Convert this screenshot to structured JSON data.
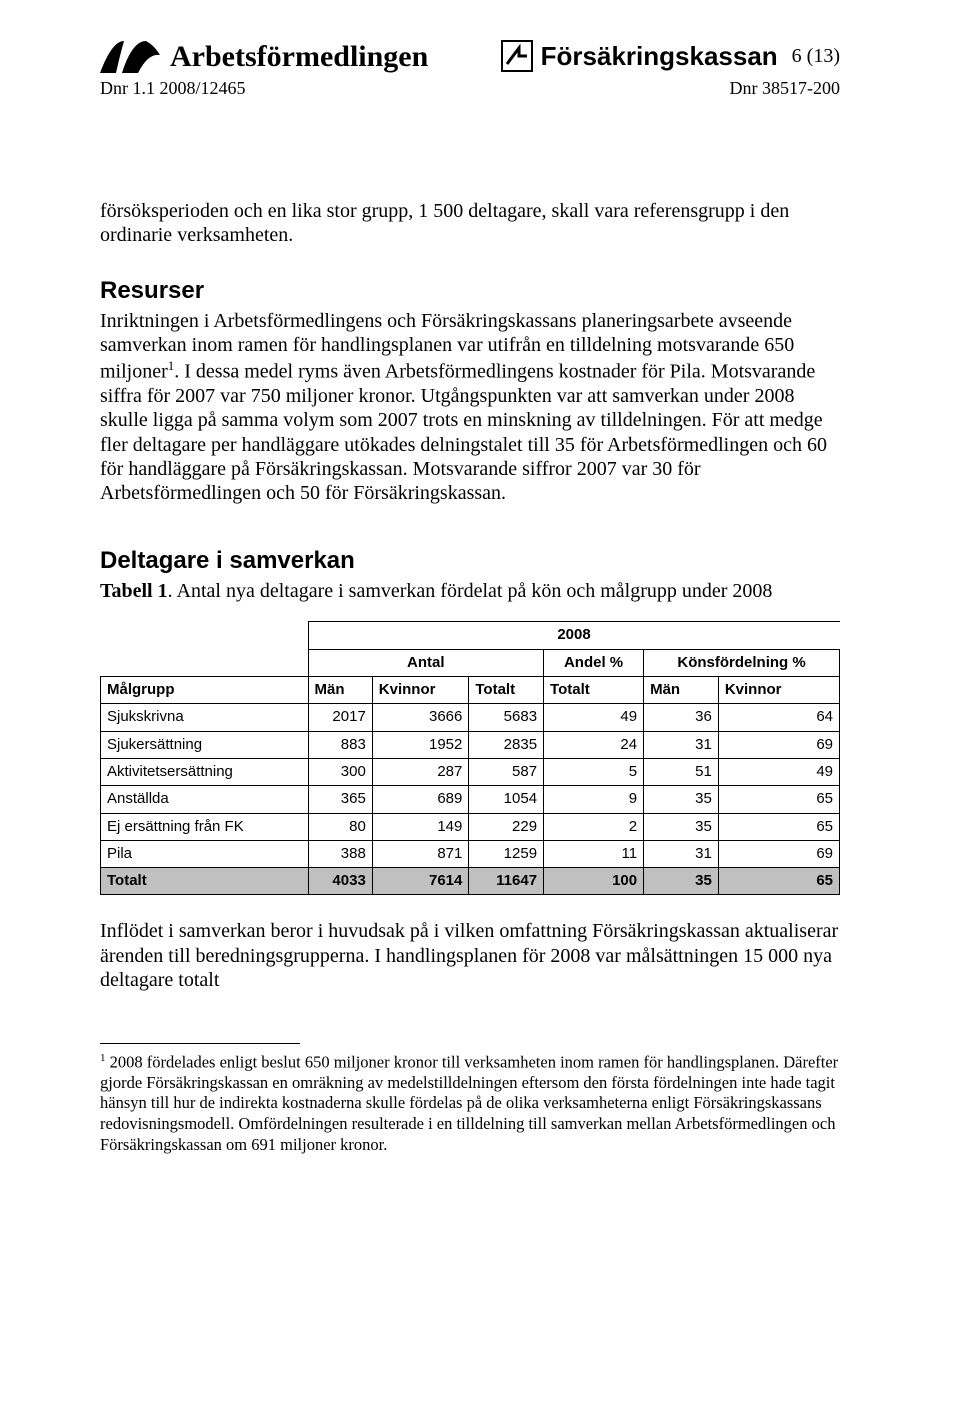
{
  "header": {
    "org1": "Arbetsförmedlingen",
    "org2": "Försäkringskassan",
    "page_num": "6 (13)",
    "dnr_left": "Dnr 1.1 2008/12465",
    "dnr_right": "Dnr 38517-200"
  },
  "paragraphs": {
    "p1": "försöksperioden och en lika stor grupp, 1 500 deltagare, skall vara referensgrupp i den ordinarie verksamheten.",
    "h_resurser": "Resurser",
    "p2a": "Inriktningen i Arbetsförmedlingens och Försäkringskassans planeringsarbete avseende samverkan inom ramen för handlingsplanen var utifrån en tilldelning motsvarande 650 miljoner",
    "p2b": ". I dessa medel ryms även Arbetsförmedlingens kostnader för Pila. Motsvarande siffra för 2007 var 750 miljoner kronor. Utgångspunkten var att samverkan under 2008 skulle ligga på samma volym som 2007 trots en minskning av tilldelningen. För att medge fler deltagare per handläggare utökades delningstalet till 35 för Arbetsförmedlingen och 60 för handläggare på Försäkringskassan. Motsvarande siffror 2007 var 30 för Arbetsförmedlingen och 50 för Försäkringskassan.",
    "h_deltagare": "Deltagare i samverkan",
    "tabell1_bold": "Tabell 1",
    "tabell1_rest": ". Antal nya deltagare i samverkan fördelat på kön och målgrupp under 2008",
    "p_after_table": "Inflödet i samverkan beror i huvudsak på i vilken omfattning Försäkringskassan aktualiserar ärenden till beredningsgrupperna. I handlingsplanen för 2008 var målsättningen 15 000 nya deltagare totalt",
    "footnote_marker": "1",
    "footnote_text": "2008 fördelades enligt beslut 650 miljoner kronor till verksamheten inom ramen för handlingsplanen. Därefter gjorde Försäkringskassan en omräkning av medelstilldelningen eftersom den första fördelningen inte hade tagit hänsyn till hur de indirekta kostnaderna skulle fördelas på de olika verksamheterna enligt Försäkringskassans redovisningsmodell. Omfördelningen resulterade i en tilldelning till samverkan mellan Arbetsförmedlingen och Försäkringskassan om 691 miljoner kronor."
  },
  "table": {
    "year": "2008",
    "group_headers": [
      "Antal",
      "Andel %",
      "Könsfördelning %"
    ],
    "col_headers": [
      "Målgrupp",
      "Män",
      "Kvinnor",
      "Totalt",
      "Totalt",
      "Män",
      "Kvinnor"
    ],
    "rows": [
      {
        "label": "Sjukskrivna",
        "men": 2017,
        "kvinnor": 3666,
        "totalt": 5683,
        "andel": 49,
        "kf_men": 36,
        "kf_kvinnor": 64
      },
      {
        "label": "Sjukersättning",
        "men": 883,
        "kvinnor": 1952,
        "totalt": 2835,
        "andel": 24,
        "kf_men": 31,
        "kf_kvinnor": 69
      },
      {
        "label": "Aktivitetsersättning",
        "men": 300,
        "kvinnor": 287,
        "totalt": 587,
        "andel": 5,
        "kf_men": 51,
        "kf_kvinnor": 49
      },
      {
        "label": "Anställda",
        "men": 365,
        "kvinnor": 689,
        "totalt": 1054,
        "andel": 9,
        "kf_men": 35,
        "kf_kvinnor": 65
      },
      {
        "label": "Ej ersättning från FK",
        "men": 80,
        "kvinnor": 149,
        "totalt": 229,
        "andel": 2,
        "kf_men": 35,
        "kf_kvinnor": 65
      },
      {
        "label": "Pila",
        "men": 388,
        "kvinnor": 871,
        "totalt": 1259,
        "andel": 11,
        "kf_men": 31,
        "kf_kvinnor": 69
      }
    ],
    "total": {
      "label": "Totalt",
      "men": 4033,
      "kvinnor": 7614,
      "totalt": 11647,
      "andel": 100,
      "kf_men": 35,
      "kf_kvinnor": 65
    }
  },
  "style": {
    "bg": "#ffffff",
    "text": "#000000",
    "table_total_bg": "#c0c0c0",
    "body_font": "Times New Roman",
    "heading_font": "Arial",
    "body_fontsize": 20,
    "heading_fontsize": 24,
    "table_fontsize": 15,
    "footnote_fontsize": 16.5
  }
}
